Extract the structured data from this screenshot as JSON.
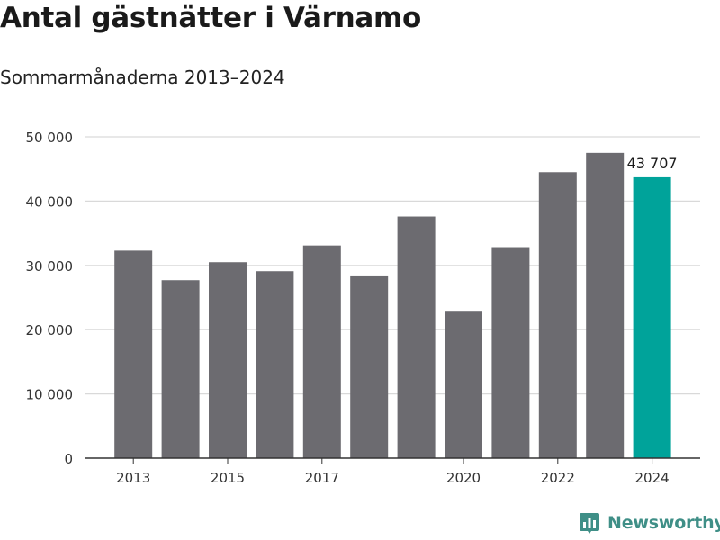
{
  "title": "Antal gästnätter i Värnamo",
  "subtitle": "Sommarmånaderna 2013–2024",
  "brand": {
    "name": "Newsworthy",
    "icon": "newsworthy-logo-icon",
    "color": "#3f8f87"
  },
  "chart_data": {
    "type": "bar",
    "categories": [
      "2013",
      "2014",
      "2015",
      "2016",
      "2017",
      "2018",
      "2019",
      "2020",
      "2021",
      "2022",
      "2023",
      "2024"
    ],
    "x_tick_labels": [
      "2013",
      "",
      "2015",
      "",
      "2017",
      "",
      "",
      "2020",
      "",
      "2022",
      "",
      "2024"
    ],
    "values": [
      32300,
      27700,
      30500,
      29100,
      33100,
      28300,
      37600,
      22800,
      32700,
      44500,
      47500,
      43707
    ],
    "ylim": [
      0,
      50000
    ],
    "y_ticks": [
      0,
      10000,
      20000,
      30000,
      40000,
      50000
    ],
    "y_tick_labels": [
      "0",
      "10 000",
      "20 000",
      "30 000",
      "40 000",
      "50 000"
    ],
    "annotation": {
      "category": "2024",
      "label": "43 707"
    },
    "colors": {
      "default": "#6c6b70",
      "highlight": "#00a39a",
      "grid": "#d9d9d9",
      "axis": "#333333"
    },
    "highlight_category": "2024",
    "grid": true
  }
}
